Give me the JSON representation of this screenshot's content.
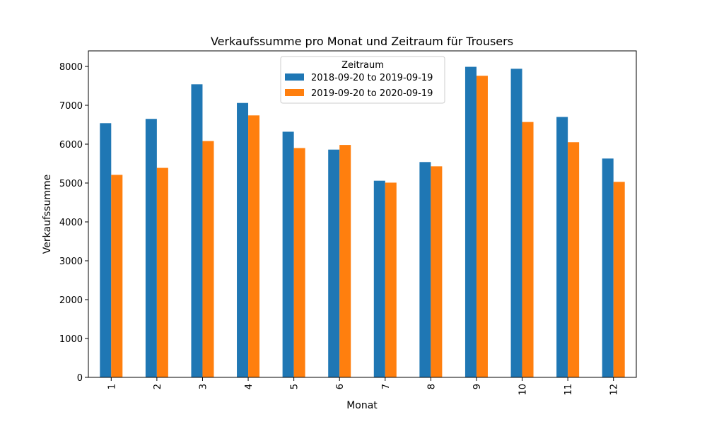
{
  "chart_data": {
    "type": "bar",
    "title": "Verkaufssumme pro Monat und Zeitraum für Trousers",
    "xlabel": "Monat",
    "ylabel": "Verkaufssumme",
    "categories": [
      "1",
      "2",
      "3",
      "4",
      "5",
      "6",
      "7",
      "8",
      "9",
      "10",
      "11",
      "12"
    ],
    "series": [
      {
        "name": "2018-09-20 to 2019-09-19",
        "color": "#1f77b4",
        "values": [
          6540,
          6650,
          7540,
          7060,
          6320,
          5860,
          5060,
          5540,
          7990,
          7940,
          6700,
          5630
        ]
      },
      {
        "name": "2019-09-20 to 2020-09-19",
        "color": "#ff7f0e",
        "values": [
          5210,
          5390,
          6080,
          6740,
          5900,
          5980,
          5010,
          5430,
          7760,
          6570,
          6050,
          5030
        ]
      }
    ],
    "ylim": [
      0,
      8400
    ],
    "yticks": [
      0,
      1000,
      2000,
      3000,
      4000,
      5000,
      6000,
      7000,
      8000
    ],
    "grid": false,
    "legend": {
      "title": "Zeitraum",
      "placement": "top-center"
    }
  }
}
